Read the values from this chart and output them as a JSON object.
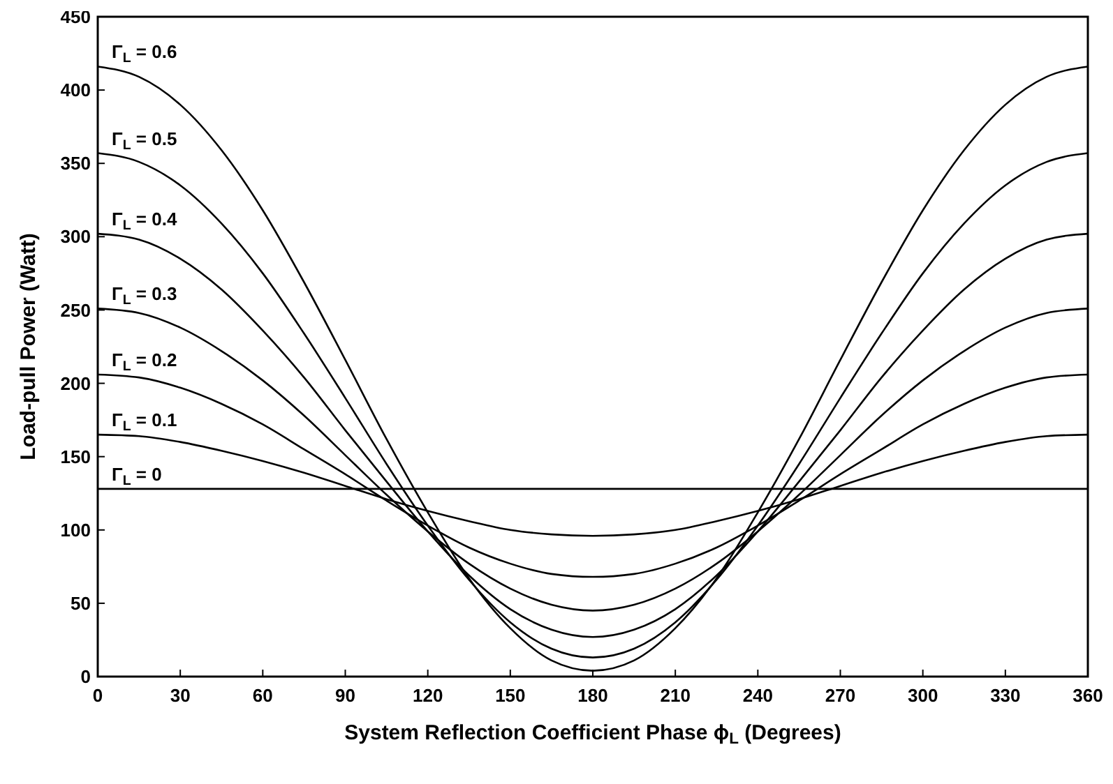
{
  "chart_data": {
    "type": "line",
    "xlabel": "System Reflection Coefficient Phase ϕ$_{L}$ (Degrees)",
    "ylabel": "Load-pull Power (Watt)",
    "x": [
      0,
      15,
      30,
      45,
      60,
      75,
      90,
      105,
      120,
      135,
      150,
      165,
      180,
      195,
      210,
      225,
      240,
      255,
      270,
      285,
      300,
      315,
      330,
      345,
      360
    ],
    "series": [
      {
        "name": "Γ$_{L}$ = 0.6",
        "color": "#000000",
        "values": [
          416,
          409,
          390,
          359,
          318,
          269,
          216,
          162,
          112,
          67,
          33,
          11,
          4,
          11,
          33,
          67,
          112,
          162,
          216,
          269,
          318,
          359,
          390,
          409,
          416
        ]
      },
      {
        "name": "Γ$_{L}$ = 0.5",
        "color": "#000000",
        "values": [
          357,
          351,
          335,
          309,
          275,
          234,
          190,
          145,
          103,
          66,
          37,
          19,
          13,
          19,
          37,
          66,
          103,
          145,
          190,
          234,
          275,
          309,
          335,
          351,
          357
        ]
      },
      {
        "name": "Γ$_{L}$ = 0.4",
        "color": "#000000",
        "values": [
          302,
          298,
          285,
          264,
          236,
          204,
          168,
          133,
          99,
          69,
          46,
          32,
          27,
          32,
          46,
          69,
          99,
          133,
          168,
          204,
          236,
          264,
          285,
          298,
          302
        ]
      },
      {
        "name": "Γ$_{L}$ = 0.3",
        "color": "#000000",
        "values": [
          251,
          248,
          238,
          222,
          202,
          178,
          151,
          124,
          99,
          77,
          60,
          49,
          45,
          49,
          60,
          77,
          99,
          124,
          151,
          178,
          202,
          222,
          238,
          248,
          251
        ]
      },
      {
        "name": "Γ$_{L}$ = 0.2",
        "color": "#000000",
        "values": [
          206,
          204,
          197,
          186,
          172,
          155,
          138,
          120,
          103,
          88,
          77,
          70,
          68,
          70,
          77,
          88,
          103,
          120,
          138,
          155,
          172,
          186,
          197,
          204,
          206
        ]
      },
      {
        "name": "Γ$_{L}$ = 0.1",
        "color": "#000000",
        "values": [
          165,
          164,
          160,
          154,
          147,
          139,
          130,
          121,
          113,
          106,
          100,
          97,
          96,
          97,
          100,
          106,
          113,
          121,
          130,
          139,
          147,
          154,
          160,
          164,
          165
        ]
      },
      {
        "name": "Γ$_{L}$ = 0",
        "color": "#000000",
        "values": [
          128,
          128,
          128,
          128,
          128,
          128,
          128,
          128,
          128,
          128,
          128,
          128,
          128,
          128,
          128,
          128,
          128,
          128,
          128,
          128,
          128,
          128,
          128,
          128,
          128
        ]
      }
    ],
    "xlim": [
      0,
      360
    ],
    "ylim": [
      0,
      450
    ],
    "xticks": [
      0,
      30,
      60,
      90,
      120,
      150,
      180,
      210,
      240,
      270,
      300,
      330,
      360
    ],
    "yticks": [
      0,
      50,
      100,
      150,
      200,
      250,
      300,
      350,
      400,
      450
    ],
    "grid": false,
    "legend": "left",
    "marker": "none",
    "line_style": "solid"
  }
}
